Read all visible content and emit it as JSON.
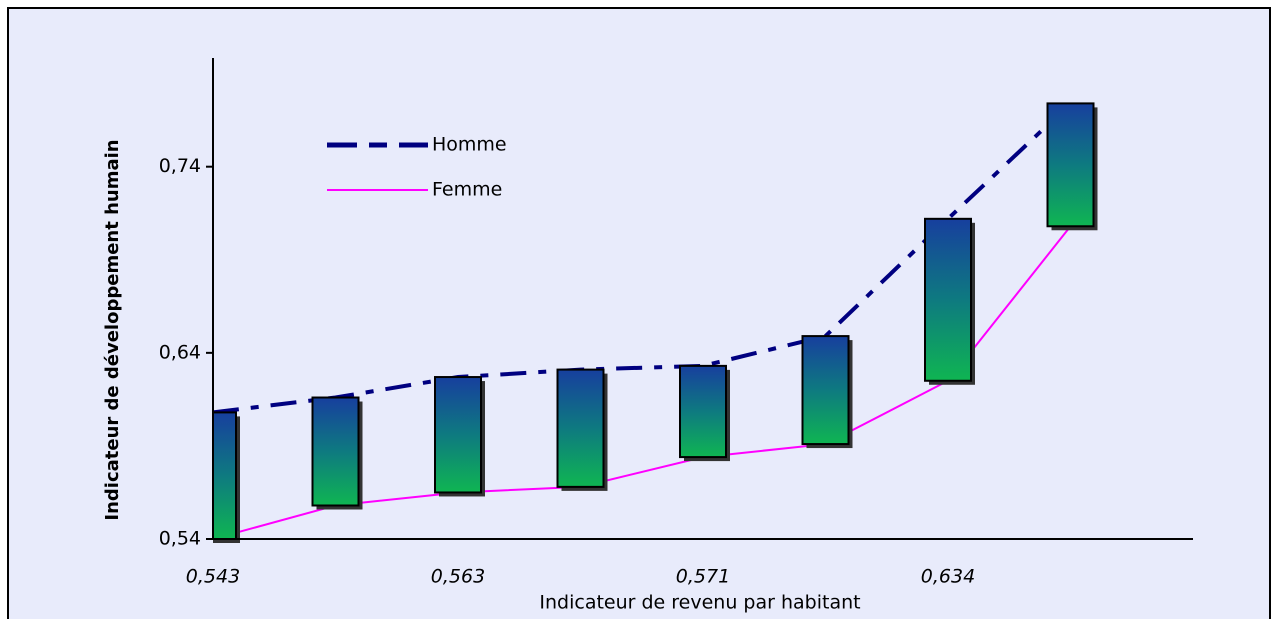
{
  "chart_data": {
    "type": "highlow",
    "categories": [
      "0,543",
      null,
      "0,563",
      null,
      "0,571",
      null,
      "0,634",
      null
    ],
    "series": [
      {
        "name": "Homme",
        "color": "#000080",
        "dash": true,
        "values": [
          0.608,
          0.616,
          0.627,
          0.631,
          0.633,
          0.649,
          0.712,
          0.774
        ]
      },
      {
        "name": "Femme",
        "color": "#ff00ff",
        "dash": false,
        "values": [
          0.54,
          0.558,
          0.565,
          0.568,
          0.584,
          0.591,
          0.625,
          0.708
        ]
      }
    ],
    "ylim": [
      0.54,
      0.8
    ],
    "yticks": [
      {
        "value": 0.54,
        "label": "0,54"
      },
      {
        "value": 0.64,
        "label": "0,64"
      },
      {
        "value": 0.74,
        "label": "0,74"
      }
    ],
    "xlabel": "Indicateur de revenu par habitant",
    "ylabel": "Indicateur de développement humain",
    "legend": "upper left"
  }
}
